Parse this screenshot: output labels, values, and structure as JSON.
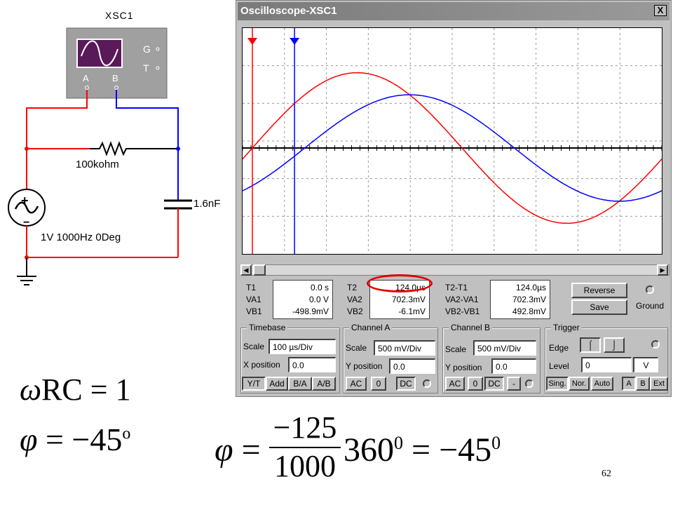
{
  "schematic": {
    "scope_name": "XSC1",
    "terminal_a": "A",
    "terminal_b": "B",
    "terminal_g": "G",
    "terminal_t": "T",
    "resistor_label": "100kohm",
    "capacitor_label": "1.6nF",
    "source_label": "1V 1000Hz 0Deg"
  },
  "window": {
    "title": "Oscilloscope-XSC1",
    "close_label": "X"
  },
  "scope_display": {
    "channel_a_color": "#ff0000",
    "channel_b_color": "#0000ff",
    "channel_a_amplitude_v": 1.0,
    "channel_a_phase_deg": 0,
    "channel_b_amplitude_v": 0.707,
    "channel_b_phase_deg": -45,
    "time_per_div_us": 100,
    "volts_per_div_mv": 500,
    "cursor_t1_us": 0.0,
    "cursor_t2_us": 124.0
  },
  "readouts": {
    "left": {
      "t_label": "T1",
      "va_label": "VA1",
      "vb_label": "VB1",
      "t": "0.0 s",
      "va": "0.0 V",
      "vb": "-498.9mV"
    },
    "mid": {
      "t_label": "T2",
      "va_label": "VA2",
      "vb_label": "VB2",
      "t": "124.0µs",
      "va": "702.3mV",
      "vb": "-6.1mV"
    },
    "right": {
      "t_label": "T2-T1",
      "va_label": "VA2-VA1",
      "vb_label": "VB2-VB1",
      "t": "124.0µs",
      "va": "702.3mV",
      "vb": "492.8mV"
    }
  },
  "buttons": {
    "reverse": "Reverse",
    "save": "Save",
    "ground": "Ground"
  },
  "timebase": {
    "title": "Timebase",
    "scale_label": "Scale",
    "scale_value": "100 µs/Div",
    "xpos_label": "X position",
    "xpos_value": "0.0",
    "modes": [
      "Y/T",
      "Add",
      "B/A",
      "A/B"
    ]
  },
  "channel_a": {
    "title": "Channel A",
    "scale_label": "Scale",
    "scale_value": "500 mV/Div",
    "ypos_label": "Y position",
    "ypos_value": "0.0",
    "coupling": [
      "AC",
      "0",
      "DC"
    ]
  },
  "channel_b": {
    "title": "Channel B",
    "scale_label": "Scale",
    "scale_value": "500 mV/Div",
    "ypos_label": "Y position",
    "ypos_value": "0.0",
    "coupling": [
      "AC",
      "0",
      "DC",
      "-"
    ]
  },
  "trigger": {
    "title": "Trigger",
    "edge_label": "Edge",
    "level_label": "Level",
    "level_value": "0",
    "level_unit": "V",
    "modes": [
      "Sing.",
      "Nor.",
      "Auto"
    ],
    "sources": [
      "A",
      "B",
      "Ext"
    ]
  },
  "formulas": {
    "omega": "ω",
    "rc_eq": "RC = 1",
    "phi": "φ",
    "phi_rhs": " = −45",
    "deg_sup": "o",
    "num": "−125",
    "den": "1000",
    "mult": "360",
    "zero_sup": "0",
    "result": " = −45",
    "result_sup": "0"
  },
  "page_number": "62"
}
